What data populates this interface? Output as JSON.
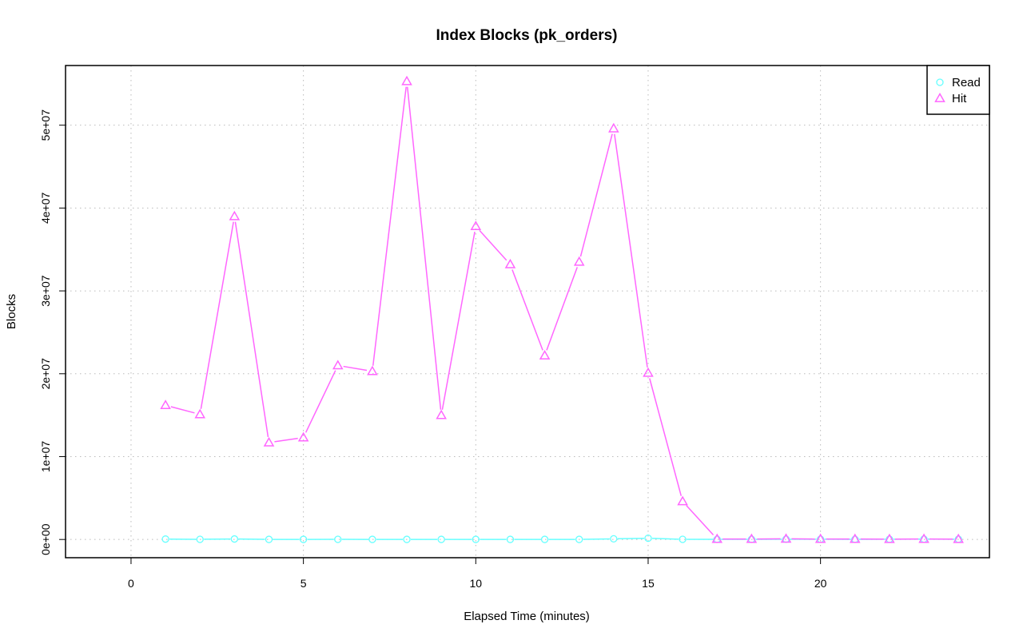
{
  "chart_data": {
    "type": "line",
    "title": "Index Blocks (pk_orders)",
    "xlabel": "Elapsed Time (minutes)",
    "ylabel": "Blocks",
    "xlim": [
      -1.9,
      24.9
    ],
    "ylim": [
      -2200000,
      57200000
    ],
    "xticks": [
      0,
      5,
      10,
      15,
      20
    ],
    "xtick_labels": [
      "0",
      "5",
      "10",
      "15",
      "20"
    ],
    "yticks": [
      0,
      10000000,
      20000000,
      30000000,
      40000000,
      50000000
    ],
    "ytick_labels": [
      "0e+00",
      "1e+07",
      "2e+07",
      "3e+07",
      "4e+07",
      "5e+07"
    ],
    "grid": true,
    "legend_position": "top-right",
    "x": [
      1,
      2,
      3,
      4,
      5,
      6,
      7,
      8,
      9,
      10,
      11,
      12,
      13,
      14,
      15,
      16,
      17,
      18,
      19,
      20,
      21,
      22,
      23,
      24
    ],
    "series": [
      {
        "name": "Read",
        "color": "#66ffff",
        "marker": "circle",
        "values": [
          50000,
          20000,
          60000,
          10000,
          10000,
          20000,
          10000,
          10000,
          10000,
          10000,
          10000,
          10000,
          10000,
          80000,
          150000,
          20000,
          20000,
          20000,
          30000,
          30000,
          20000,
          30000,
          40000,
          30000
        ]
      },
      {
        "name": "Hit",
        "color": "#ff66ff",
        "marker": "triangle",
        "values": [
          16200000,
          15100000,
          39000000,
          11700000,
          12300000,
          21000000,
          20300000,
          55300000,
          15000000,
          37800000,
          33200000,
          22200000,
          33500000,
          49600000,
          20100000,
          4600000,
          50000,
          50000,
          80000,
          50000,
          50000,
          40000,
          60000,
          40000
        ]
      }
    ]
  }
}
